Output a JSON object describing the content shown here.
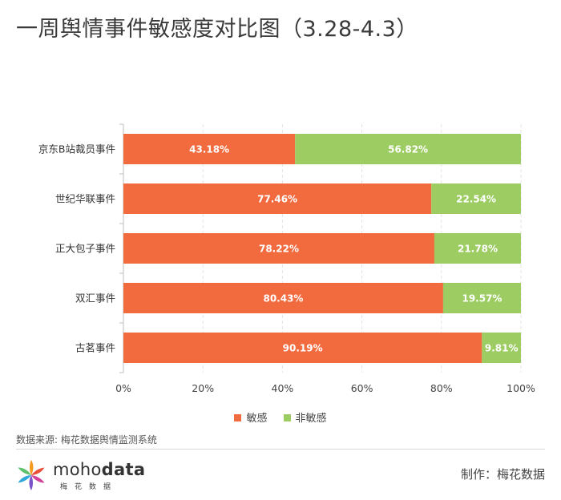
{
  "colors": {
    "sensitive": "#f26b3f",
    "non_sensitive": "#9ccc62",
    "grid": "#e4e4e4",
    "axis": "#bfbfbf",
    "bar_text": "#ffffff"
  },
  "chart_data": {
    "type": "bar",
    "orientation": "horizontal",
    "stacked": true,
    "title": "一周舆情事件敏感度对比图（3.28-4.3）",
    "categories": [
      "京东B站裁员事件",
      "世纪华联事件",
      "正大包子事件",
      "双汇事件",
      "古茗事件"
    ],
    "series": [
      {
        "name": "敏感",
        "values": [
          43.18,
          77.46,
          78.22,
          80.43,
          90.19
        ],
        "labels": [
          "43.18%",
          "77.46%",
          "78.22%",
          "80.43%",
          "90.19%"
        ]
      },
      {
        "name": "非敏感",
        "values": [
          56.82,
          22.54,
          21.78,
          19.57,
          9.81
        ],
        "labels": [
          "56.82%",
          "22.54%",
          "21.78%",
          "19.57%",
          "9.81%"
        ]
      }
    ],
    "xlim": [
      0,
      100
    ],
    "xticks": [
      0,
      20,
      40,
      60,
      80,
      100
    ],
    "xtick_labels": [
      "0%",
      "20%",
      "40%",
      "60%",
      "80%",
      "100%"
    ],
    "grid": true,
    "legend": "bottom"
  },
  "source": "数据来源: 梅花数据舆情监测系统",
  "logo": {
    "word_light": "moho",
    "word_bold": "data",
    "sub": "梅花数据"
  },
  "credit": "制作：梅花数据"
}
